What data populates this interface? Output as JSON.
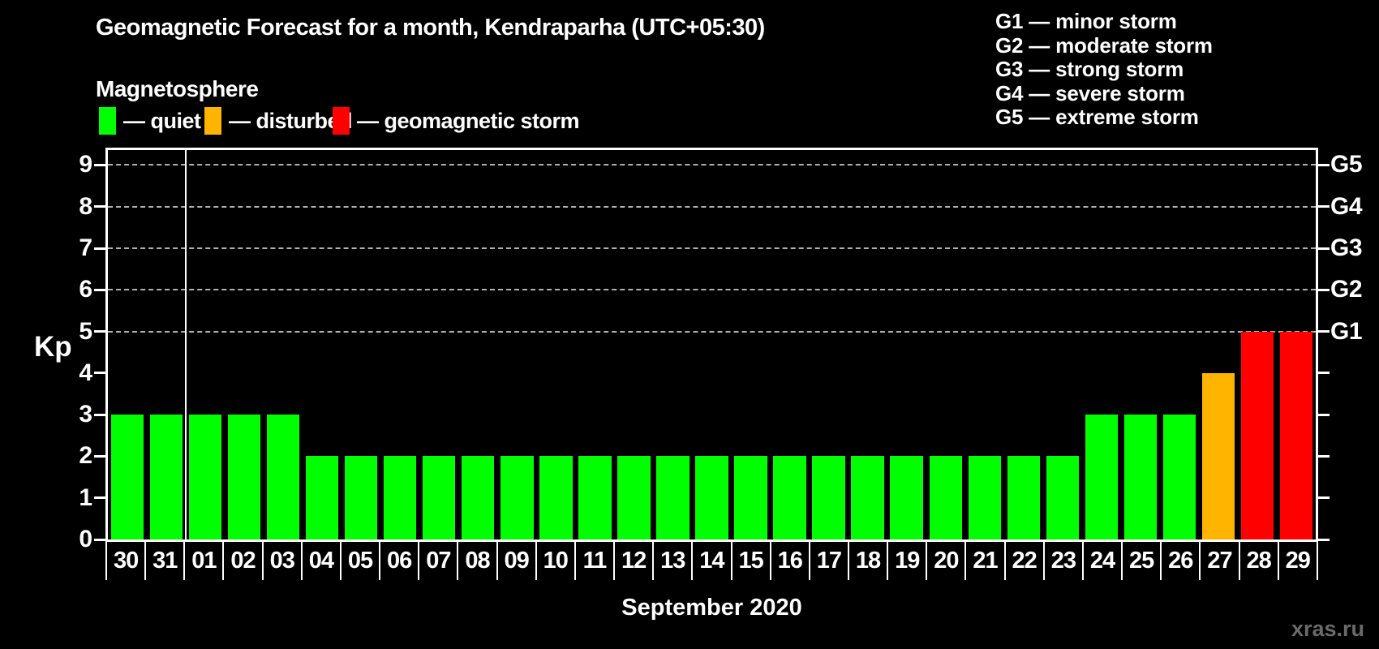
{
  "title": "Geomagnetic Forecast for a month, Kendraparha (UTC+05:30)",
  "watermark": "xras.ru",
  "legend": {
    "heading": "Magnetosphere",
    "items": [
      {
        "name": "quiet",
        "label": "— quiet",
        "color": "#00ff00"
      },
      {
        "name": "disturbed",
        "label": "— disturbed",
        "color": "#ffb400"
      },
      {
        "name": "geomagnetic-storm",
        "label": "— geomagnetic storm",
        "color": "#ff0000"
      }
    ]
  },
  "g_legend": [
    "G1 — minor storm",
    "G2 — moderate storm",
    "G3 — strong storm",
    "G4 — severe storm",
    "G5 — extreme storm"
  ],
  "chart_data": {
    "type": "bar",
    "title": "Geomagnetic Forecast for a month, Kendraparha (UTC+05:30)",
    "xlabel": "September 2020",
    "ylabel": "Kp",
    "ylim": [
      0,
      9.36
    ],
    "grid": "horizontal dashed gridlines at Kp 5,6,7,8,9",
    "legend_position": "top",
    "categories": [
      "30",
      "31",
      "01",
      "02",
      "03",
      "04",
      "05",
      "06",
      "07",
      "08",
      "09",
      "10",
      "11",
      "12",
      "13",
      "14",
      "15",
      "16",
      "17",
      "18",
      "19",
      "20",
      "21",
      "22",
      "23",
      "24",
      "25",
      "26",
      "27",
      "28",
      "29"
    ],
    "values": [
      3,
      3,
      3,
      3,
      3,
      2,
      2,
      2,
      2,
      2,
      2,
      2,
      2,
      2,
      2,
      2,
      2,
      2,
      2,
      2,
      2,
      2,
      2,
      2,
      2,
      3,
      3,
      3,
      4,
      5,
      5
    ],
    "bar_colors": [
      "#00ff00",
      "#00ff00",
      "#00ff00",
      "#00ff00",
      "#00ff00",
      "#00ff00",
      "#00ff00",
      "#00ff00",
      "#00ff00",
      "#00ff00",
      "#00ff00",
      "#00ff00",
      "#00ff00",
      "#00ff00",
      "#00ff00",
      "#00ff00",
      "#00ff00",
      "#00ff00",
      "#00ff00",
      "#00ff00",
      "#00ff00",
      "#00ff00",
      "#00ff00",
      "#00ff00",
      "#00ff00",
      "#00ff00",
      "#00ff00",
      "#00ff00",
      "#ffb400",
      "#ff0000",
      "#ff0000"
    ],
    "y_ticks": [
      0,
      1,
      2,
      3,
      4,
      5,
      6,
      7,
      8,
      9
    ],
    "y_tick_labels": [
      "0",
      "1",
      "2",
      "3",
      "4",
      "5",
      "6",
      "7",
      "8",
      "9"
    ],
    "right_axis": {
      "kp_levels": [
        5,
        6,
        7,
        8,
        9
      ],
      "labels": [
        "G1",
        "G2",
        "G3",
        "G4",
        "G5"
      ]
    },
    "month_separator_after_category": "31",
    "colors_meaning": {
      "quiet": "#00ff00",
      "disturbed": "#ffb400",
      "storm": "#ff0000"
    }
  }
}
